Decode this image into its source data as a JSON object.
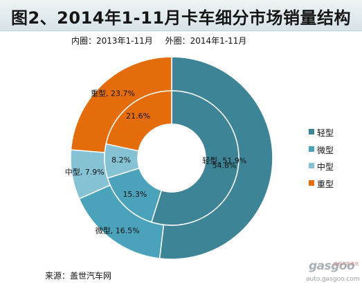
{
  "chart_data": {
    "type": "pie",
    "title": "图2、2014年1-11月卡车细分市场销量结构",
    "subtitle": {
      "inner": "内圈：2013年1-11月",
      "outer": "外圈：2014年1-11月"
    },
    "categories": [
      "轻型",
      "微型",
      "中型",
      "重型"
    ],
    "series": [
      {
        "name": "外圈：2014年1-11月",
        "ring": "outer",
        "values": [
          51.9,
          16.5,
          7.9,
          23.7
        ],
        "labels": [
          "轻型, 51.9%",
          "微型, 16.5%",
          "中型, 7.9%",
          "重型, 23.7%"
        ]
      },
      {
        "name": "内圈：2013年1-11月",
        "ring": "inner",
        "values": [
          54.8,
          15.3,
          8.2,
          21.6
        ],
        "labels": [
          "54.8%",
          "15.3%",
          "8.2%",
          "21.6%"
        ]
      }
    ],
    "colors": [
      "#3e8497",
      "#4aa3bb",
      "#85c2d4",
      "#e46c0a"
    ],
    "legend": {
      "position": "right",
      "items": [
        "轻型",
        "微型",
        "中型",
        "重型"
      ]
    }
  },
  "source": "来源：盖世汽车网",
  "watermark": {
    "logo": "gasgoo",
    "sub": "盖世汽车资讯",
    "url": "auto.gasgoo.com"
  }
}
